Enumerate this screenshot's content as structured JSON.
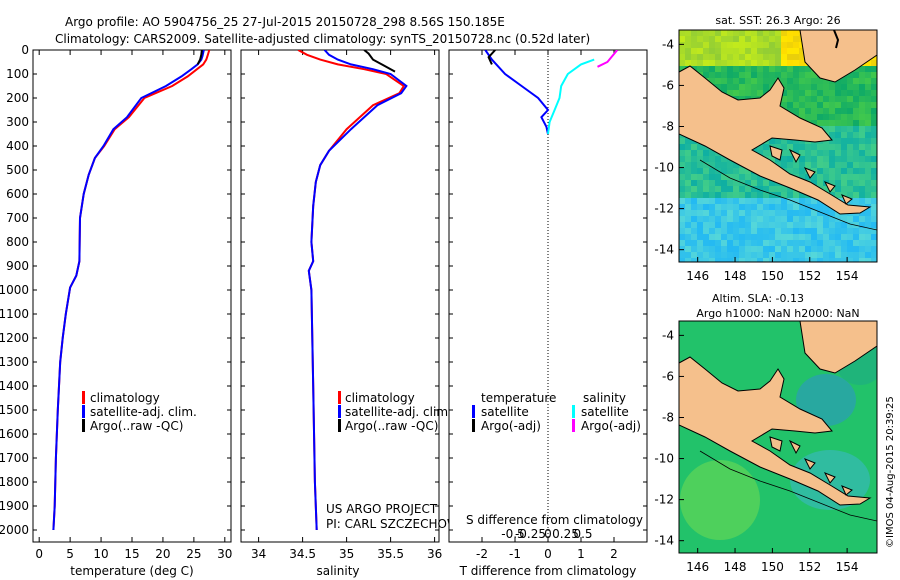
{
  "header": {
    "line1": "Argo profile: AO 5904756_25 27-Jul-2015 20150728_298 8.56S 150.185E",
    "line2": "Climatology: CARS2009. Satellite-adjusted climatology: synTS_20150728.nc (0.52d later)"
  },
  "colors": {
    "clim": "#ff0000",
    "sat": "#0000ff",
    "argo": "#000000",
    "sat_s": "#00ffff",
    "argo_s": "#ff00ff",
    "land": "#f5c08c"
  },
  "depth_axis": {
    "ticks": [
      0,
      100,
      200,
      300,
      400,
      500,
      600,
      700,
      800,
      900,
      1000,
      1100,
      1200,
      1300,
      1400,
      1500,
      1600,
      1700,
      1800,
      1900,
      2000
    ],
    "range": [
      0,
      2050
    ]
  },
  "chart_data": [
    {
      "type": "line",
      "id": "temperature",
      "xlabel": "temperature (deg C)",
      "xlim": [
        -1,
        31
      ],
      "xticks": [
        0,
        5,
        10,
        15,
        20,
        25,
        30
      ],
      "legend": [
        "climatology",
        "satellite-adj. clim.",
        "Argo(..raw -QC)"
      ],
      "series": [
        {
          "name": "climatology",
          "color": "red",
          "x": [
            27.5,
            27.2,
            27.0,
            26.5,
            25.5,
            24.0,
            21.5,
            17.0,
            14.5,
            12.2,
            10.5,
            9.0,
            8.0,
            7.2,
            6.6,
            6.5,
            6.0,
            5.0,
            4.3,
            3.8,
            3.4,
            3.0,
            2.7,
            2.5,
            2.3
          ],
          "y": [
            0,
            25,
            40,
            60,
            80,
            110,
            150,
            200,
            280,
            330,
            400,
            450,
            520,
            600,
            700,
            880,
            940,
            990,
            1100,
            1200,
            1300,
            1500,
            1700,
            1900,
            2000
          ]
        },
        {
          "name": "satellite-adj. clim.",
          "color": "blue",
          "x": [
            26.6,
            26.4,
            26.2,
            25.6,
            24.6,
            23.0,
            20.5,
            16.5,
            14.2,
            12.0,
            10.4,
            9.0,
            8.0,
            7.2,
            6.6,
            6.5,
            6.0,
            5.0,
            4.3,
            3.8,
            3.4,
            3.0,
            2.7,
            2.5,
            2.3
          ],
          "y": [
            0,
            25,
            40,
            60,
            80,
            110,
            150,
            200,
            280,
            330,
            400,
            450,
            520,
            600,
            700,
            880,
            940,
            990,
            1100,
            1200,
            1300,
            1500,
            1700,
            1900,
            2000
          ]
        },
        {
          "name": "Argo(..raw -QC)",
          "color": "black",
          "x": [
            26.3,
            26.2,
            26.0,
            25.6
          ],
          "y": [
            0,
            20,
            40,
            60
          ]
        }
      ]
    },
    {
      "type": "line",
      "id": "salinity",
      "xlabel": "salinity",
      "xlim": [
        33.8,
        36.05
      ],
      "xticks": [
        34,
        34.5,
        35,
        35.5,
        36
      ],
      "legend": [
        "climatology",
        "satellite-adj. clim.",
        "Argo(..raw -QC)"
      ],
      "annotation": [
        "US ARGO PROJECT",
        "PI: CARL SZCZECHOWSKI"
      ],
      "series": [
        {
          "name": "climatology",
          "color": "red",
          "x": [
            34.45,
            34.55,
            34.7,
            34.9,
            35.2,
            35.45,
            35.65,
            35.6,
            35.3,
            35.0,
            34.8,
            34.7,
            34.65,
            34.62,
            34.6,
            34.62,
            34.57,
            34.6,
            34.62,
            34.64,
            34.66
          ],
          "y": [
            0,
            20,
            40,
            60,
            80,
            100,
            150,
            180,
            230,
            330,
            420,
            480,
            550,
            650,
            800,
            880,
            920,
            1000,
            1400,
            1800,
            2000
          ]
        },
        {
          "name": "satellite-adj. clim.",
          "color": "blue",
          "x": [
            34.75,
            34.8,
            34.9,
            35.05,
            35.3,
            35.5,
            35.68,
            35.62,
            35.35,
            35.05,
            34.8,
            34.7,
            34.65,
            34.62,
            34.6,
            34.62,
            34.57,
            34.6,
            34.62,
            34.64,
            34.66
          ],
          "y": [
            0,
            20,
            40,
            60,
            80,
            100,
            150,
            180,
            230,
            330,
            420,
            480,
            550,
            650,
            800,
            880,
            920,
            1000,
            1400,
            1800,
            2000
          ]
        },
        {
          "name": "Argo(..raw -QC)",
          "color": "black",
          "x": [
            35.2,
            35.25,
            35.3,
            35.4,
            35.55
          ],
          "y": [
            0,
            15,
            40,
            60,
            90
          ]
        }
      ]
    },
    {
      "type": "line",
      "id": "differences",
      "xlabel_top": "S difference from climatology",
      "xticks_top": [
        -0.5,
        -0.25,
        0,
        0.25,
        0.5
      ],
      "xlabel": "T difference from climatology",
      "xticks": [
        -2,
        -1,
        0,
        1,
        2
      ],
      "xlim": [
        -3,
        3
      ],
      "legend_t": {
        "head": "temperature",
        "items": [
          "satellite",
          "Argo(-adj)"
        ]
      },
      "legend_s": {
        "head": "salinity",
        "items": [
          "satellite",
          "Argo(-adj)"
        ]
      },
      "series": [
        {
          "name": "temperature satellite",
          "color": "blue",
          "x": [
            -1.9,
            -1.7,
            -1.3,
            -0.8,
            -0.3,
            0.0,
            -0.2,
            -0.05,
            0.0
          ],
          "y": [
            0,
            40,
            100,
            150,
            200,
            250,
            280,
            320,
            350
          ]
        },
        {
          "name": "temperature Argo",
          "color": "black",
          "x": [
            -1.6,
            -1.8,
            -1.7
          ],
          "y": [
            0,
            30,
            60
          ]
        },
        {
          "name": "salinity satellite",
          "color": "cyan",
          "x": [
            1.4,
            1.0,
            0.6,
            0.4,
            0.35,
            0.2,
            0.05,
            0.0
          ],
          "y": [
            40,
            60,
            100,
            150,
            200,
            250,
            300,
            350
          ]
        },
        {
          "name": "salinity Argo",
          "color": "magenta",
          "x": [
            2.1,
            1.8,
            1.5
          ],
          "y": [
            0,
            50,
            70
          ]
        }
      ]
    }
  ],
  "maps": {
    "sst": {
      "title": "sat. SST: 26.3 Argo: 26",
      "yticks": [
        -4,
        -6,
        -8,
        -10,
        -12,
        -14
      ],
      "xticks": [
        146,
        148,
        150,
        152,
        154
      ]
    },
    "sla": {
      "title1": "Altim. SLA: -0.13",
      "title2": "Argo h1000: NaN h2000: NaN",
      "yticks": [
        -4,
        -6,
        -8,
        -10,
        -12,
        -14
      ],
      "xticks": [
        146,
        148,
        150,
        152,
        154
      ]
    }
  },
  "footer": {
    "credit": "©IMOS 04-Aug-2015 20:39:25"
  }
}
